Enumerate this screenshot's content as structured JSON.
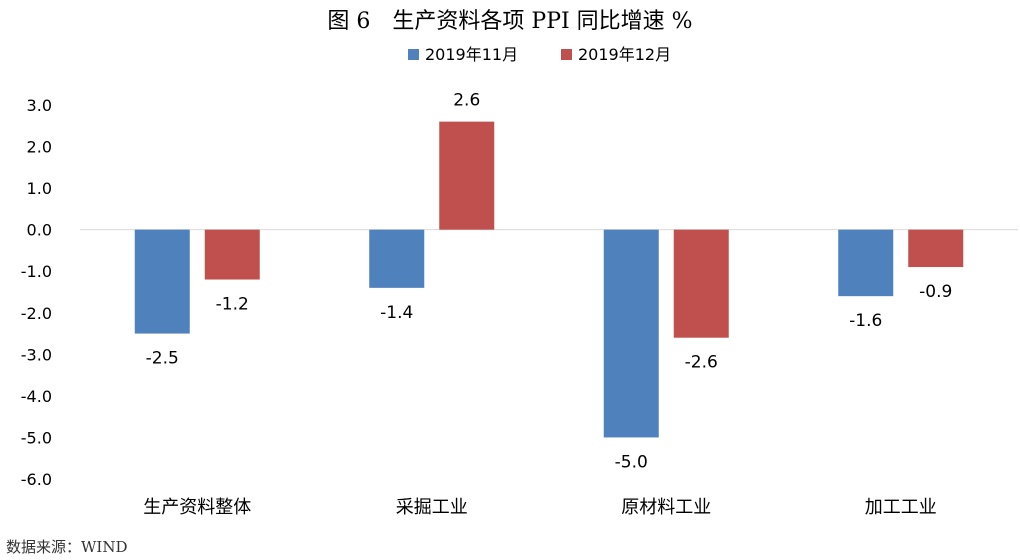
{
  "chart_data": {
    "type": "bar",
    "title": "图 6　生产资料各项 PPI 同比增速 %",
    "categories": [
      "生产资料整体",
      "采掘工业",
      "原材料工业",
      "加工工业"
    ],
    "series": [
      {
        "name": "2019年11月",
        "values": [
          -2.5,
          -1.4,
          -5.0,
          -1.6
        ],
        "labels": [
          "-2.5",
          "-1.4",
          "-5.0",
          "-1.6"
        ],
        "color": "#4F81BD"
      },
      {
        "name": "2019年12月",
        "values": [
          -1.2,
          2.6,
          -2.6,
          -0.9
        ],
        "labels": [
          "-1.2",
          "2.6",
          "-2.6",
          "-0.9"
        ],
        "color": "#C0504D"
      }
    ],
    "yticks": [
      "3.0",
      "2.0",
      "1.0",
      "0.0",
      "-1.0",
      "-2.0",
      "-3.0",
      "-4.0",
      "-5.0",
      "-6.0"
    ],
    "ylim": [
      -6.0,
      3.0
    ],
    "xlabel": "",
    "ylabel": "",
    "legend": "top-center",
    "grid": false
  },
  "source_text": "数据来源：WIND"
}
